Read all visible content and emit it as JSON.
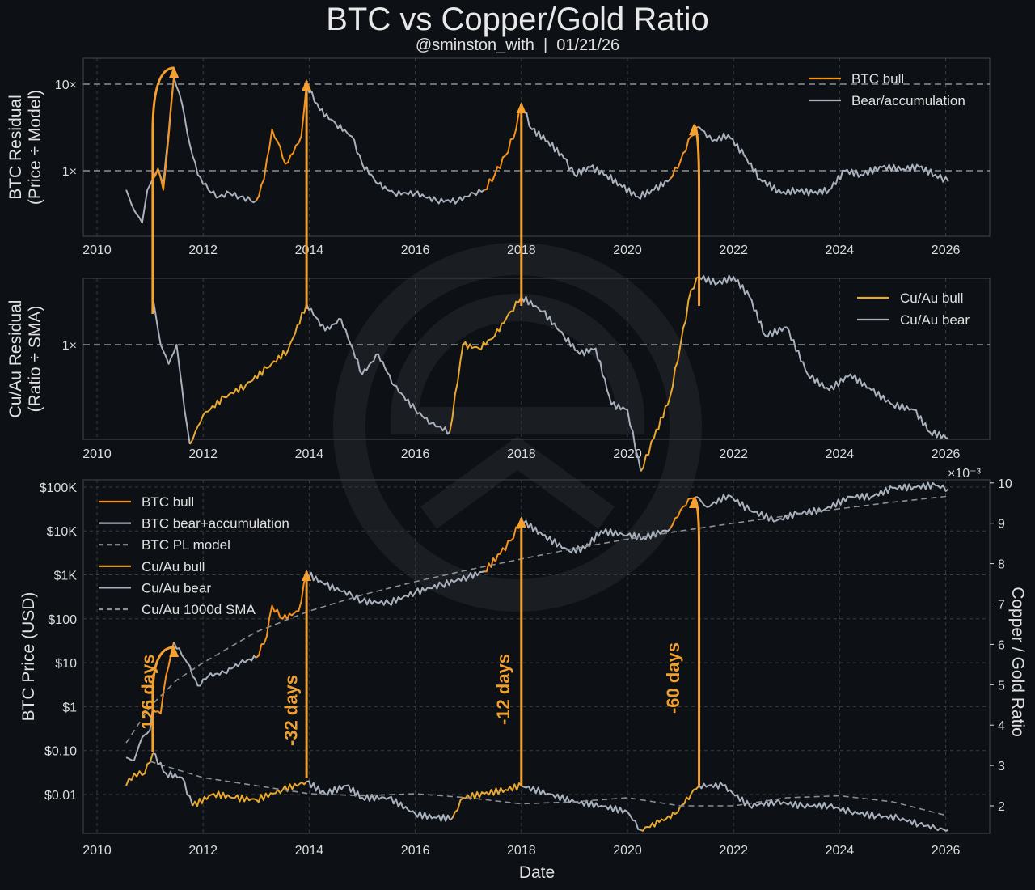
{
  "header": {
    "title": "BTC vs Copper/Gold Ratio",
    "subtitle": "@sminston_with  |  01/21/26"
  },
  "colors": {
    "background": "#0d1014",
    "btc_bull": "#f7931a",
    "cuau_bull": "#e8a92e",
    "bear": "#a9b1bd",
    "model": "#8a8f96",
    "grid": "#3a3d42",
    "arrow": "#f5a030"
  },
  "chart_data": [
    {
      "type": "line",
      "title": "",
      "ylabel": "BTC Residual\n(Price ÷ Model)",
      "xlabel": "",
      "yscale": "log",
      "ylim": [
        0.18,
        18
      ],
      "xlim": [
        2009.75,
        2026.8
      ],
      "xticks": [
        2010,
        2012,
        2014,
        2016,
        2018,
        2020,
        2022,
        2024,
        2026
      ],
      "yticks": [
        {
          "value": 10,
          "label": "10×"
        },
        {
          "value": 1,
          "label": "1×"
        }
      ],
      "reference_line": 1,
      "legend": {
        "position": "top-right",
        "entries": [
          "BTC bull",
          "Bear/accumulation"
        ]
      },
      "series": [
        {
          "name": "Bear/accumulation",
          "x": [
            2010.55,
            2010.7,
            2010.85,
            2010.95,
            2011.05,
            2011.15,
            2011.25,
            2011.45,
            2011.6,
            2011.75,
            2011.9,
            2012.1,
            2012.3,
            2012.5,
            2012.7,
            2012.9,
            2013.0
          ],
          "y": [
            0.6,
            0.35,
            0.25,
            0.6,
            0.8,
            1.05,
            0.7,
            12,
            6,
            2,
            0.9,
            0.6,
            0.5,
            0.55,
            0.5,
            0.45,
            0.45
          ]
        },
        {
          "name": "BTC bull",
          "x": [
            2011.05,
            2011.15,
            2011.25,
            2011.35,
            2011.45
          ],
          "y": [
            0.8,
            1.05,
            0.6,
            2.5,
            12
          ]
        },
        {
          "name": "BTC bull",
          "x": [
            2013.0,
            2013.15,
            2013.3,
            2013.4,
            2013.55,
            2013.7,
            2013.85,
            2013.95
          ],
          "y": [
            0.45,
            0.8,
            3,
            2.2,
            1.2,
            1.6,
            2.5,
            10
          ]
        },
        {
          "name": "Bear/accumulation",
          "x": [
            2013.95,
            2014.2,
            2014.5,
            2014.8,
            2015.0,
            2015.3,
            2015.6,
            2016.0,
            2016.4,
            2016.8,
            2017.1,
            2017.3
          ],
          "y": [
            10,
            5,
            3.5,
            2.5,
            1.2,
            0.7,
            0.55,
            0.55,
            0.45,
            0.45,
            0.55,
            0.6
          ]
        },
        {
          "name": "BTC bull",
          "x": [
            2017.3,
            2017.5,
            2017.7,
            2017.9,
            2018.0
          ],
          "y": [
            0.6,
            0.9,
            1.5,
            3,
            6
          ]
        },
        {
          "name": "Bear/accumulation",
          "x": [
            2018.0,
            2018.2,
            2018.5,
            2018.8,
            2019.0,
            2019.3,
            2019.6,
            2019.9,
            2020.2,
            2020.5,
            2020.8
          ],
          "y": [
            6,
            3,
            2.2,
            1.4,
            0.9,
            1.1,
            0.9,
            0.65,
            0.5,
            0.6,
            0.8
          ]
        },
        {
          "name": "BTC bull",
          "x": [
            2020.8,
            2021.0,
            2021.2,
            2021.35
          ],
          "y": [
            0.8,
            1.3,
            2.5,
            3.2
          ]
        },
        {
          "name": "Bear/accumulation",
          "x": [
            2021.35,
            2021.6,
            2021.9,
            2022.2,
            2022.5,
            2022.9,
            2023.2,
            2023.5,
            2023.8,
            2024.1,
            2024.4,
            2024.8,
            2025.2,
            2025.5,
            2025.8,
            2026.05
          ],
          "y": [
            3.2,
            2.2,
            2.6,
            1.5,
            0.8,
            0.55,
            0.6,
            0.55,
            0.6,
            1,
            0.9,
            1.1,
            1.05,
            1.1,
            0.9,
            0.75
          ]
        }
      ],
      "arrows": [
        {
          "from_x": 2011.05,
          "to_x": 2011.45
        },
        {
          "from_x": 2013.95,
          "to_x": 2013.95
        },
        {
          "from_x": 2018.0,
          "to_x": 2018.0
        },
        {
          "from_x": 2021.35,
          "to_x": 2021.25
        }
      ]
    },
    {
      "type": "line",
      "ylabel": "Cu/Au Residual\n(Ratio ÷ SMA)",
      "xlabel": "",
      "yscale": "log",
      "ylim": [
        0.5,
        1.8
      ],
      "xlim": [
        2009.75,
        2026.8
      ],
      "xticks": [
        2010,
        2012,
        2014,
        2016,
        2018,
        2020,
        2022,
        2024,
        2026
      ],
      "yticks": [
        {
          "value": 1,
          "label": "1×"
        }
      ],
      "reference_line": 1,
      "legend": {
        "position": "top-right",
        "entries": [
          "Cu/Au bull",
          "Cu/Au bear"
        ]
      },
      "series": [
        {
          "name": "Cu/Au bear",
          "x": [
            2011.05,
            2011.2,
            2011.35,
            2011.5,
            2011.65,
            2011.75
          ],
          "y": [
            1.3,
            1.0,
            0.9,
            1.0,
            0.7,
            0.58
          ]
        },
        {
          "name": "Cu/Au bull",
          "x": [
            2011.75,
            2012.0,
            2012.4,
            2012.8,
            2013.2,
            2013.6,
            2013.95
          ],
          "y": [
            0.58,
            0.68,
            0.75,
            0.8,
            0.88,
            0.97,
            1.25
          ]
        },
        {
          "name": "Cu/Au bear",
          "x": [
            2013.95,
            2014.3,
            2014.6,
            2015.0,
            2015.3,
            2015.6,
            2016.0,
            2016.3,
            2016.65
          ],
          "y": [
            1.25,
            1.08,
            1.15,
            0.85,
            0.95,
            0.8,
            0.7,
            0.65,
            0.62
          ]
        },
        {
          "name": "Cu/Au bull",
          "x": [
            2016.65,
            2016.9,
            2017.2,
            2017.5,
            2017.8,
            2018.0
          ],
          "y": [
            0.62,
            1.0,
            0.98,
            1.05,
            1.2,
            1.3
          ]
        },
        {
          "name": "Cu/Au bear",
          "x": [
            2018.0,
            2018.4,
            2018.8,
            2019.1,
            2019.4,
            2019.7,
            2020.0,
            2020.25
          ],
          "y": [
            1.3,
            1.2,
            1.05,
            0.95,
            0.98,
            0.72,
            0.7,
            0.5
          ]
        },
        {
          "name": "Cu/Au bull",
          "x": [
            2020.25,
            2020.5,
            2020.8,
            2021.0,
            2021.2,
            2021.35
          ],
          "y": [
            0.5,
            0.6,
            0.75,
            1.0,
            1.35,
            1.45
          ]
        },
        {
          "name": "Cu/Au bear",
          "x": [
            2021.35,
            2021.7,
            2022.0,
            2022.3,
            2022.6,
            2023.0,
            2023.4,
            2023.8,
            2024.2,
            2024.6,
            2025.0,
            2025.4,
            2025.7,
            2026.05
          ],
          "y": [
            1.45,
            1.4,
            1.45,
            1.3,
            1.05,
            1.1,
            0.85,
            0.78,
            0.85,
            0.78,
            0.72,
            0.7,
            0.62,
            0.6
          ]
        }
      ]
    },
    {
      "type": "line",
      "title": "",
      "xlabel": "Date",
      "ylabel": "BTC Price (USD)",
      "ylabel_right": "Copper / Gold Ratio",
      "right_axis_multiplier": "×10⁻³",
      "yscale": "log",
      "ylim": [
        0.0008,
        120000
      ],
      "ylim_right": [
        1.4,
        10.2
      ],
      "xlim": [
        2009.75,
        2026.8
      ],
      "xticks": [
        2010,
        2012,
        2014,
        2016,
        2018,
        2020,
        2022,
        2024,
        2026
      ],
      "yticks": [
        {
          "value": 100000,
          "label": "$100K"
        },
        {
          "value": 10000,
          "label": "$10K"
        },
        {
          "value": 1000,
          "label": "$1K"
        },
        {
          "value": 100,
          "label": "$100"
        },
        {
          "value": 10,
          "label": "$10"
        },
        {
          "value": 1,
          "label": "$1"
        },
        {
          "value": 0.1,
          "label": "$0.10"
        },
        {
          "value": 0.01,
          "label": "$0.01"
        }
      ],
      "yticks_right": [
        2,
        3,
        4,
        5,
        6,
        7,
        8,
        9,
        10
      ],
      "legend": {
        "position": "top-left",
        "entries": [
          "BTC bull",
          "BTC bear+accumulation",
          "BTC PL model",
          "Cu/Au bull",
          "Cu/Au bear",
          "Cu/Au 1000d SMA"
        ]
      },
      "series": [
        {
          "name": "BTC bear+accumulation",
          "axis": "left",
          "x": [
            2010.55,
            2010.7,
            2010.85,
            2011.0,
            2011.05
          ],
          "y": [
            0.07,
            0.06,
            0.2,
            0.3,
            0.9
          ]
        },
        {
          "name": "BTC bull",
          "axis": "left",
          "x": [
            2011.05,
            2011.2,
            2011.3,
            2011.45
          ],
          "y": [
            0.9,
            0.7,
            5,
            30
          ]
        },
        {
          "name": "BTC bear+accumulation",
          "axis": "left",
          "x": [
            2011.45,
            2011.7,
            2011.9,
            2012.1,
            2012.4,
            2012.7,
            2013.0
          ],
          "y": [
            30,
            10,
            3,
            5,
            6,
            10,
            13
          ]
        },
        {
          "name": "BTC bull",
          "axis": "left",
          "x": [
            2013.0,
            2013.2,
            2013.3,
            2013.5,
            2013.8,
            2013.95
          ],
          "y": [
            13,
            40,
            200,
            100,
            150,
            1100
          ]
        },
        {
          "name": "BTC bear+accumulation",
          "axis": "left",
          "x": [
            2013.95,
            2014.3,
            2014.8,
            2015.0,
            2015.5,
            2016.0,
            2016.5,
            2017.0,
            2017.3
          ],
          "y": [
            1100,
            600,
            350,
            250,
            230,
            400,
            600,
            900,
            1200
          ]
        },
        {
          "name": "BTC bull",
          "axis": "left",
          "x": [
            2017.3,
            2017.6,
            2017.8,
            2018.0
          ],
          "y": [
            1200,
            3000,
            6000,
            18000
          ]
        },
        {
          "name": "BTC bear+accumulation",
          "axis": "left",
          "x": [
            2018.0,
            2018.4,
            2018.9,
            2019.2,
            2019.5,
            2020.0,
            2020.3,
            2020.8
          ],
          "y": [
            18000,
            8000,
            3500,
            4000,
            10000,
            8000,
            7000,
            11000
          ]
        },
        {
          "name": "BTC bull",
          "axis": "left",
          "x": [
            2020.8,
            2021.0,
            2021.2,
            2021.3
          ],
          "y": [
            11000,
            30000,
            55000,
            60000
          ]
        },
        {
          "name": "BTC bear+accumulation",
          "axis": "left",
          "x": [
            2021.3,
            2021.5,
            2021.9,
            2022.3,
            2022.8,
            2023.2,
            2023.7,
            2024.2,
            2024.6,
            2025.0,
            2025.4,
            2025.8,
            2026.05
          ],
          "y": [
            60000,
            35000,
            65000,
            30000,
            17000,
            25000,
            30000,
            60000,
            60000,
            95000,
            100000,
            110000,
            90000
          ]
        },
        {
          "name": "BTC PL model",
          "axis": "left",
          "x": [
            2010.55,
            2011.0,
            2011.5,
            2012.0,
            2013.0,
            2014.0,
            2015.0,
            2016.0,
            2017.0,
            2018.0,
            2019.0,
            2020.0,
            2021.0,
            2022.0,
            2023.0,
            2024.0,
            2025.0,
            2026.05
          ],
          "y": [
            0.15,
            1,
            4,
            10,
            50,
            150,
            350,
            700,
            1300,
            2300,
            4000,
            6500,
            10000,
            15000,
            22000,
            32000,
            45000,
            62000
          ]
        },
        {
          "name": "Cu/Au bull",
          "axis": "right",
          "x": [
            2010.55,
            2010.7,
            2010.9,
            2011.05
          ],
          "y": [
            2.5,
            2.8,
            2.8,
            3.3
          ]
        },
        {
          "name": "Cu/Au bear",
          "axis": "right",
          "x": [
            2011.05,
            2011.3,
            2011.6,
            2011.8
          ],
          "y": [
            3.3,
            2.8,
            2.7,
            2.0
          ]
        },
        {
          "name": "Cu/Au bull",
          "axis": "right",
          "x": [
            2011.8,
            2012.2,
            2012.6,
            2013.0,
            2013.5,
            2013.95
          ],
          "y": [
            2.0,
            2.3,
            2.2,
            2.15,
            2.4,
            2.6
          ]
        },
        {
          "name": "Cu/Au bear",
          "axis": "right",
          "x": [
            2013.95,
            2014.3,
            2014.7,
            2015.0,
            2015.5,
            2016.0,
            2016.4,
            2016.7
          ],
          "y": [
            2.6,
            2.3,
            2.5,
            2.2,
            2.2,
            1.8,
            1.7,
            1.7
          ]
        },
        {
          "name": "Cu/Au bull",
          "axis": "right",
          "x": [
            2016.7,
            2016.9,
            2017.3,
            2017.7,
            2018.0
          ],
          "y": [
            1.7,
            2.2,
            2.3,
            2.4,
            2.5
          ]
        },
        {
          "name": "Cu/Au bear",
          "axis": "right",
          "x": [
            2018.0,
            2018.5,
            2019.0,
            2019.5,
            2020.0,
            2020.25
          ],
          "y": [
            2.5,
            2.3,
            2.1,
            2.0,
            1.85,
            1.4
          ]
        },
        {
          "name": "Cu/Au bull",
          "axis": "right",
          "x": [
            2020.25,
            2020.6,
            2020.9,
            2021.2,
            2021.35
          ],
          "y": [
            1.4,
            1.6,
            1.8,
            2.3,
            2.5
          ]
        },
        {
          "name": "Cu/Au bear",
          "axis": "right",
          "x": [
            2021.35,
            2021.8,
            2022.3,
            2022.8,
            2023.3,
            2023.8,
            2024.2,
            2024.7,
            2025.1,
            2025.5,
            2025.8,
            2026.05
          ],
          "y": [
            2.5,
            2.5,
            2.0,
            2.1,
            2.0,
            2.0,
            1.85,
            1.75,
            1.7,
            1.55,
            1.45,
            1.4
          ]
        },
        {
          "name": "Cu/Au 1000d SMA",
          "axis": "right",
          "x": [
            2011.0,
            2011.5,
            2012.0,
            2013.0,
            2014.0,
            2015.0,
            2016.0,
            2017.0,
            2018.0,
            2019.0,
            2020.0,
            2021.0,
            2022.0,
            2023.0,
            2024.0,
            2025.0,
            2026.05
          ],
          "y": [
            3.1,
            2.9,
            2.7,
            2.5,
            2.3,
            2.25,
            2.3,
            2.2,
            2.05,
            2.1,
            2.2,
            2.0,
            2.0,
            2.2,
            2.25,
            2.1,
            1.75
          ]
        }
      ],
      "annotations": [
        {
          "text": "126 days",
          "x": 2010.95
        },
        {
          "text": "-32 days",
          "x": 2013.65
        },
        {
          "text": "-12 days",
          "x": 2017.65
        },
        {
          "text": "-60 days",
          "x": 2020.85
        }
      ]
    }
  ]
}
